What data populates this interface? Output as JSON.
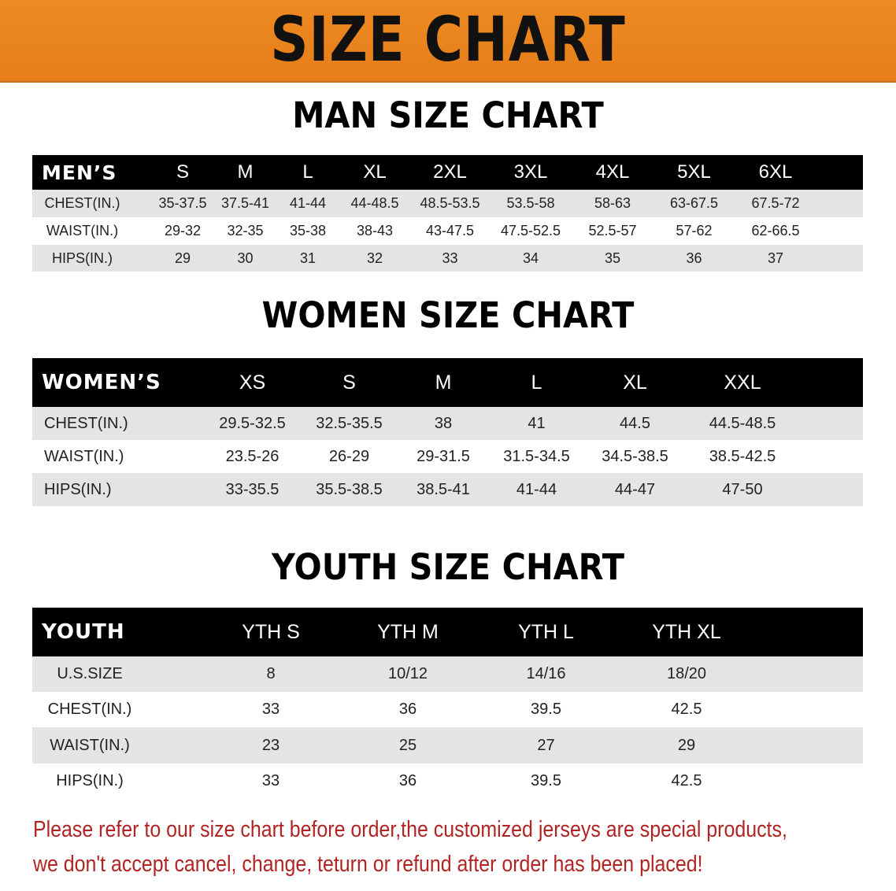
{
  "banner": {
    "title": "SIZE CHART",
    "color": "#e8821e"
  },
  "men": {
    "title": "MAN SIZE CHART",
    "headers": [
      "MEN’S",
      "S",
      "M",
      "L",
      "XL",
      "2XL",
      "3XL",
      "4XL",
      "5XL",
      "6XL",
      ""
    ],
    "rows": [
      [
        "CHEST(IN.)",
        "35-37.5",
        "37.5-41",
        "41-44",
        "44-48.5",
        "48.5-53.5",
        "53.5-58",
        "58-63",
        "63-67.5",
        "67.5-72",
        ""
      ],
      [
        "WAIST(IN.)",
        "29-32",
        "32-35",
        "35-38",
        "38-43",
        "43-47.5",
        "47.5-52.5",
        "52.5-57",
        "57-62",
        "62-66.5",
        ""
      ],
      [
        "HIPS(IN.)",
        "29",
        "30",
        "31",
        "32",
        "33",
        "34",
        "35",
        "36",
        "37",
        ""
      ]
    ]
  },
  "women": {
    "title": "WOMEN SIZE CHART",
    "headers": [
      "WOMEN’S",
      "XS",
      "S",
      "M",
      "L",
      "XL",
      "XXL",
      ""
    ],
    "rows": [
      [
        "CHEST(IN.)",
        "29.5-32.5",
        "32.5-35.5",
        "38",
        "41",
        "44.5",
        "44.5-48.5",
        ""
      ],
      [
        "WAIST(IN.)",
        "23.5-26",
        "26-29",
        "29-31.5",
        "31.5-34.5",
        "34.5-38.5",
        "38.5-42.5",
        ""
      ],
      [
        "HIPS(IN.)",
        "33-35.5",
        "35.5-38.5",
        "38.5-41",
        "41-44",
        "44-47",
        "47-50",
        ""
      ]
    ]
  },
  "youth": {
    "title": "YOUTH SIZE CHART",
    "headers": [
      "YOUTH",
      "YTH S",
      "YTH M",
      "YTH L",
      "YTH XL",
      ""
    ],
    "rows": [
      [
        "U.S.SIZE",
        "8",
        "10/12",
        "14/16",
        "18/20",
        ""
      ],
      [
        "CHEST(IN.)",
        "33",
        "36",
        "39.5",
        "42.5",
        ""
      ],
      [
        "WAIST(IN.)",
        "23",
        "25",
        "27",
        "29",
        ""
      ],
      [
        "HIPS(IN.)",
        "33",
        "36",
        "39.5",
        "42.5",
        ""
      ]
    ]
  },
  "notice": {
    "line1": "Please refer to our size chart before order,the customized jerseys are special products,",
    "line2": "we don't accept cancel, change, teturn or refund after order has been placed!",
    "color": "#b22424"
  }
}
